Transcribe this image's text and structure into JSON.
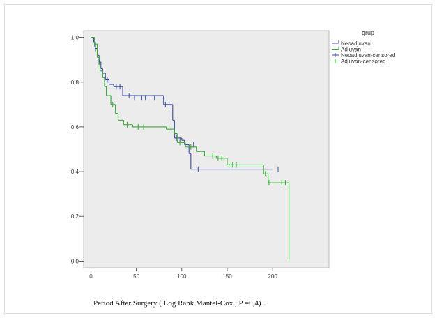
{
  "chart_data": {
    "type": "line",
    "subtype": "kaplan-meier",
    "title": "",
    "xlabel": "Period After Surgery ( Log Rank Mantel-Cox , P =0,4).",
    "ylabel": "",
    "xlim": [
      -8,
      262
    ],
    "ylim": [
      -0.03,
      1.03
    ],
    "x_ticks": [
      0,
      50,
      100,
      150,
      200
    ],
    "x_tick_labels": [
      "0",
      "50",
      "100",
      "150",
      "200"
    ],
    "y_ticks": [
      0,
      0.2,
      0.4,
      0.6,
      0.8,
      1.0
    ],
    "y_tick_labels": [
      "0,0",
      "0,2",
      "0,4",
      "0,6",
      "0,8",
      "1,0"
    ],
    "grid": false,
    "background": "#ececec",
    "legend": {
      "title": "grup",
      "position": "right-outside",
      "entries": [
        {
          "label": "Neoadjuvan",
          "color": "#3a4a9c",
          "kind": "line"
        },
        {
          "label": "Adjuvan",
          "color": "#33aa33",
          "kind": "line"
        },
        {
          "label": "Neoadjuvan-censored",
          "color": "#3a4a9c",
          "kind": "censor"
        },
        {
          "label": "Adjuvan-censored",
          "color": "#33aa33",
          "kind": "censor"
        }
      ]
    },
    "series": [
      {
        "name": "Neoadjuvan",
        "color": "#3a4a9c",
        "tail_color": "#9aa3d6",
        "steps": [
          [
            0,
            1.0
          ],
          [
            3,
            0.98
          ],
          [
            5,
            0.95
          ],
          [
            7,
            0.92
          ],
          [
            9,
            0.89
          ],
          [
            11,
            0.86
          ],
          [
            13,
            0.84
          ],
          [
            16,
            0.81
          ],
          [
            20,
            0.79
          ],
          [
            25,
            0.78
          ],
          [
            35,
            0.74
          ],
          [
            80,
            0.7
          ],
          [
            90,
            0.63
          ],
          [
            92,
            0.55
          ],
          [
            100,
            0.54
          ],
          [
            103,
            0.52
          ],
          [
            108,
            0.48
          ],
          [
            110,
            0.41
          ],
          [
            200,
            0.41
          ]
        ],
        "censored": [
          [
            5,
            0.95
          ],
          [
            9,
            0.89
          ],
          [
            18,
            0.81
          ],
          [
            28,
            0.78
          ],
          [
            32,
            0.78
          ],
          [
            42,
            0.74
          ],
          [
            48,
            0.73
          ],
          [
            56,
            0.73
          ],
          [
            60,
            0.73
          ],
          [
            70,
            0.73
          ],
          [
            82,
            0.7
          ],
          [
            86,
            0.7
          ],
          [
            94,
            0.55
          ],
          [
            98,
            0.54
          ],
          [
            113,
            0.52
          ],
          [
            118,
            0.41
          ],
          [
            206,
            0.41
          ]
        ]
      },
      {
        "name": "Adjuvan",
        "color": "#33aa33",
        "steps": [
          [
            0,
            1.0
          ],
          [
            4,
            0.97
          ],
          [
            7,
            0.91
          ],
          [
            10,
            0.85
          ],
          [
            13,
            0.82
          ],
          [
            15,
            0.78
          ],
          [
            17,
            0.74
          ],
          [
            22,
            0.7
          ],
          [
            27,
            0.66
          ],
          [
            30,
            0.63
          ],
          [
            36,
            0.61
          ],
          [
            46,
            0.6
          ],
          [
            83,
            0.59
          ],
          [
            92,
            0.57
          ],
          [
            95,
            0.53
          ],
          [
            104,
            0.51
          ],
          [
            116,
            0.49
          ],
          [
            125,
            0.47
          ],
          [
            138,
            0.46
          ],
          [
            150,
            0.43
          ],
          [
            190,
            0.39
          ],
          [
            195,
            0.35
          ],
          [
            218,
            0.35
          ],
          [
            218,
            0.0
          ]
        ],
        "censored": [
          [
            4,
            0.97
          ],
          [
            24,
            0.7
          ],
          [
            40,
            0.61
          ],
          [
            52,
            0.6
          ],
          [
            58,
            0.6
          ],
          [
            86,
            0.59
          ],
          [
            98,
            0.53
          ],
          [
            110,
            0.51
          ],
          [
            134,
            0.47
          ],
          [
            140,
            0.46
          ],
          [
            144,
            0.46
          ],
          [
            152,
            0.43
          ],
          [
            156,
            0.43
          ],
          [
            160,
            0.43
          ],
          [
            192,
            0.39
          ],
          [
            196,
            0.35
          ],
          [
            210,
            0.35
          ],
          [
            214,
            0.35
          ]
        ]
      }
    ]
  }
}
